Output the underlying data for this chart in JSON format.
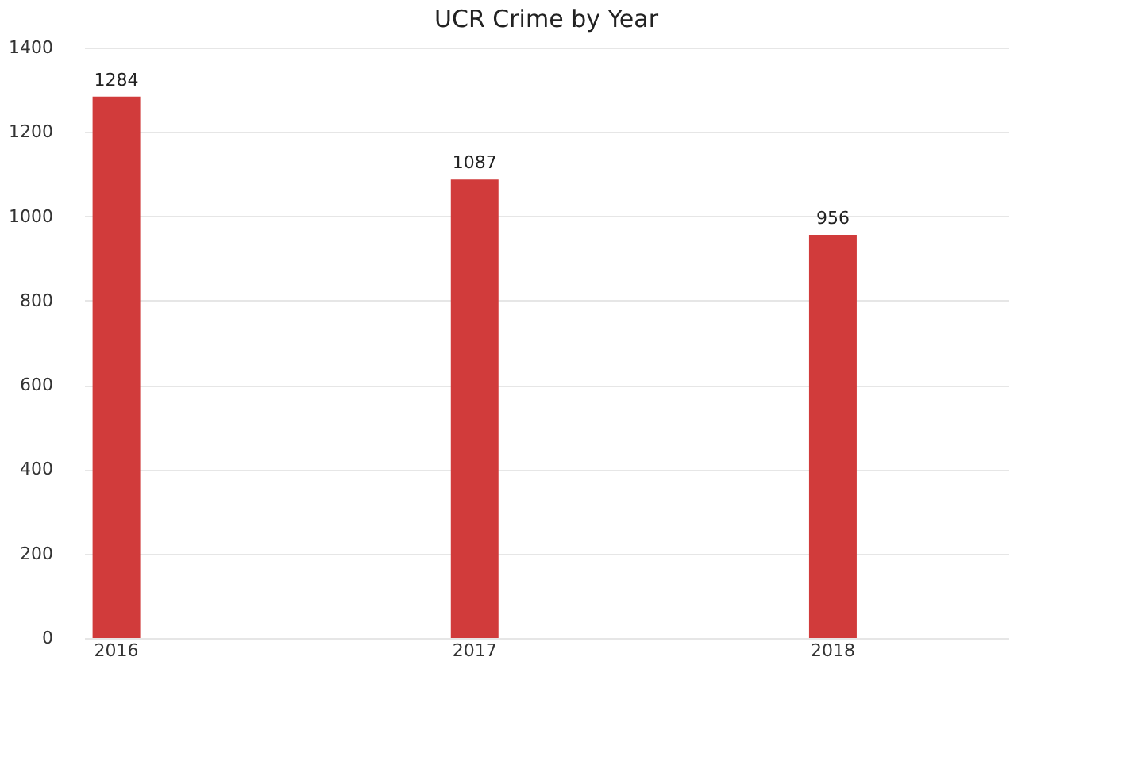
{
  "chart_data": {
    "type": "bar",
    "title": "UCR Crime by Year",
    "categories": [
      "2016",
      "2017",
      "2018"
    ],
    "series": [
      {
        "color": "#d13b3b",
        "values": [
          1284,
          1087,
          956
        ]
      }
    ],
    "ylim": [
      0,
      1400
    ],
    "yticks": [
      0,
      200,
      400,
      600,
      800,
      1000,
      1200,
      1400
    ],
    "grid": "y",
    "data_labels": true
  }
}
